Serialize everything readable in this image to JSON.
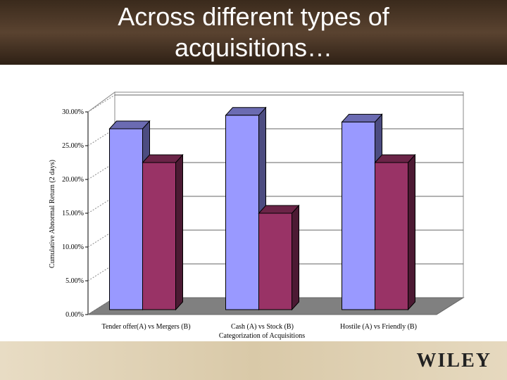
{
  "title": "Across different types of acquisitions…",
  "logo": "WILEY",
  "chart_data": {
    "type": "bar3d",
    "y_label": "Cumulative Abnormal Return (2 days)",
    "x_label": "Categorization of Acquisitions",
    "categories": [
      "Tender offer(A) vs Mergers (B)",
      "Cash (A) vs Stock (B)",
      "Hostile (A) vs Friendly (B)"
    ],
    "series": [
      {
        "color": "#9999ff",
        "values": [
          27.5,
          29.5,
          28.5
        ]
      },
      {
        "color": "#993366",
        "values": [
          22.5,
          15,
          22.5
        ]
      }
    ],
    "ylim": [
      0,
      30
    ],
    "yticks": [
      {
        "value": 0,
        "label": "0.00%"
      },
      {
        "value": 5,
        "label": "5.00%"
      },
      {
        "value": 10,
        "label": "10.00%"
      },
      {
        "value": 15,
        "label": "15.00%"
      },
      {
        "value": 20,
        "label": "20.00%"
      },
      {
        "value": 25,
        "label": "25.00%"
      },
      {
        "value": 30,
        "label": "30.00%"
      }
    ],
    "grid": true
  }
}
